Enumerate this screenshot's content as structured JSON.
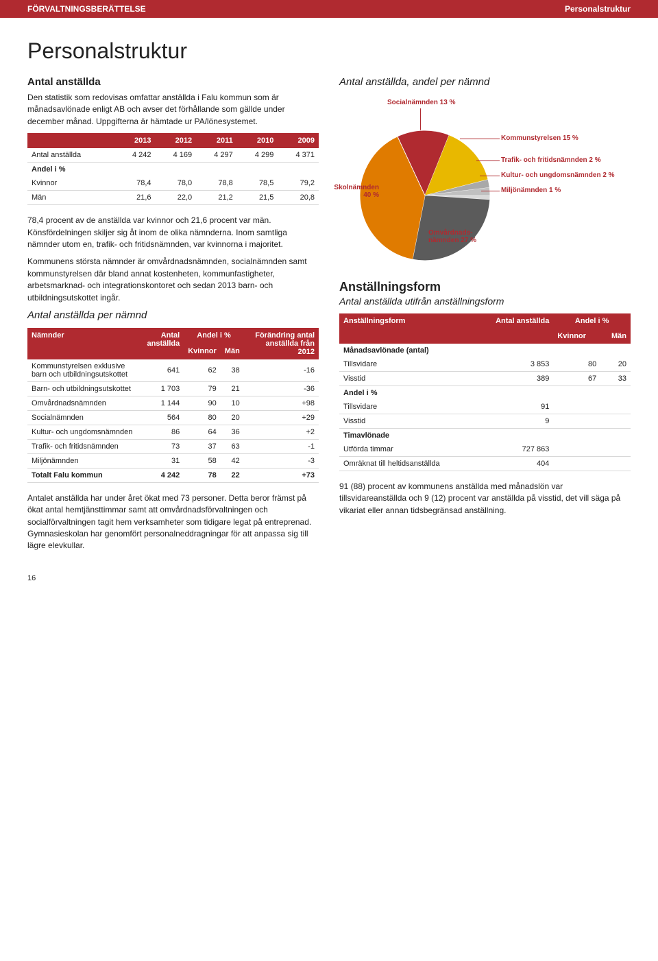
{
  "header": {
    "left": "FÖRVALTNINGSBERÄTTELSE",
    "right": "Personalstruktur"
  },
  "title": "Personalstruktur",
  "intro_heading": "Antal anställda",
  "intro_text": "Den statistik som redovisas omfattar anställda i Falu kommun som är månadsavlönade enligt AB och avser det förhållande som gällde under december månad. Uppgifterna är hämtade ur PA/lönesystemet.",
  "table1": {
    "headers": [
      "",
      "2013",
      "2012",
      "2011",
      "2010",
      "2009"
    ],
    "row_labels": [
      "Antal anställda",
      "Andel i %",
      "Kvinnor",
      "Män"
    ],
    "rows": [
      [
        "Antal anställda",
        "4 242",
        "4 169",
        "4 297",
        "4 299",
        "4 371"
      ],
      [
        "Kvinnor",
        "78,4",
        "78,0",
        "78,8",
        "78,5",
        "79,2"
      ],
      [
        "Män",
        "21,6",
        "22,0",
        "21,2",
        "21,5",
        "20,8"
      ]
    ],
    "section_label": "Andel i %"
  },
  "body_para1": "78,4 procent av de anställda var kvinnor och 21,6 procent var män. Könsfördelningen skiljer sig åt inom de olika nämnderna. Inom samtliga nämnder utom en, trafik- och fritidsnämnden, var kvinnorna i majoritet.",
  "body_para2": "Kommunens största nämnder är omvårdnadsnämnden, socialnämnden samt kommunstyrelsen där bland annat kostenheten, kommunfastigheter, arbetsmarknad- och integrationskontoret och sedan 2013 barn- och utbildningsutskottet ingår.",
  "table2_heading": "Antal anställda per nämnd",
  "table2": {
    "header_top": [
      "Nämnder",
      "Antal anställda",
      "Andel i %",
      "Förändring antal anställda från 2012"
    ],
    "header_sub": [
      "Kvinnor",
      "Män"
    ],
    "rows": [
      [
        "Kommunstyrelsen exklusive barn och utbildnings­utskottet",
        "641",
        "62",
        "38",
        "-16"
      ],
      [
        "Barn- och utbild­ningsutskottet",
        "1 703",
        "79",
        "21",
        "-36"
      ],
      [
        "Omvårdnads­nämnden",
        "1 144",
        "90",
        "10",
        "+98"
      ],
      [
        "Socialnämnden",
        "564",
        "80",
        "20",
        "+29"
      ],
      [
        "Kultur- och ungdomsnämnden",
        "86",
        "64",
        "36",
        "+2"
      ],
      [
        "Trafik- och fritidsnämnden",
        "73",
        "37",
        "63",
        "-1"
      ],
      [
        "Miljönämnden",
        "31",
        "58",
        "42",
        "-3"
      ]
    ],
    "total": [
      "Totalt Falu kommun",
      "4 242",
      "78",
      "22",
      "+73"
    ]
  },
  "bottom_para": "Antalet anställda har under året ökat med 73 personer. Detta beror främst på ökat antal hemtjänsttimmar samt att omvård­nadsförvaltningen och socialförvaltningen tagit hem verksam­heter som tidigare legat på entreprenad. Gymnasieskolan har genomfört personalneddragningar för att anpassa sig till lägre elevkullar.",
  "pie_heading": "Antal anställda, andel per nämnd",
  "pie": {
    "type": "pie",
    "background_color": "#ffffff",
    "label_color": "#b02a30",
    "label_fontsize": 10,
    "slices": [
      {
        "label": "Socialnämnden 13 %",
        "value": 13,
        "color": "#b02a30"
      },
      {
        "label": "Kommunstyrelsen 15 %",
        "value": 15,
        "color": "#e8b800"
      },
      {
        "label": "Trafik- och fritidsnämnden 2 %",
        "value": 2,
        "color": "#a9a9a9"
      },
      {
        "label": "Kultur- och ungdomsnämnden 2 %",
        "value": 2,
        "color": "#c0c0c0"
      },
      {
        "label": "Miljönämnden 1 %",
        "value": 1,
        "color": "#d9d9d9"
      },
      {
        "label": "Omvårdnads­nämnden 27 %",
        "value": 27,
        "color": "#5b5b5b"
      },
      {
        "label": "Skolnämnden 40 %",
        "value": 40,
        "color": "#e07b00"
      }
    ],
    "inner_labels": {
      "skol": "Skolnämnden\n40 %",
      "omv": "Omvårdnads-\nnämnden 27 %"
    }
  },
  "section2_title": "Anställningsform",
  "section2_sub": "Antal anställda utifrån anställningsform",
  "table3": {
    "header_top": [
      "Anställningsform",
      "Antal anställda",
      "Andel i %"
    ],
    "header_sub": [
      "Kvinnor",
      "Män"
    ],
    "sections": [
      {
        "label": "Månadsavlönade (antal)",
        "rows": [
          [
            "Tillsvidare",
            "3 853",
            "80",
            "20"
          ],
          [
            "Visstid",
            "389",
            "67",
            "33"
          ]
        ]
      },
      {
        "label": "Andel i %",
        "rows": [
          [
            "Tillsvidare",
            "91",
            "",
            ""
          ],
          [
            "Visstid",
            "9",
            "",
            ""
          ]
        ]
      },
      {
        "label": "Timavlönade",
        "rows": [
          [
            "Utförda timmar",
            "727 863",
            "",
            ""
          ],
          [
            "Omräknat till heltidsanställda",
            "404",
            "",
            ""
          ]
        ]
      }
    ]
  },
  "table3_para": "91 (88) procent av kommunens anställda med månadslön var tillsvidareanställda och 9 (12) procent var anställda på visstid, det vill säga på vikariat eller annan tidsbegränsad anställning.",
  "page_number": "16"
}
